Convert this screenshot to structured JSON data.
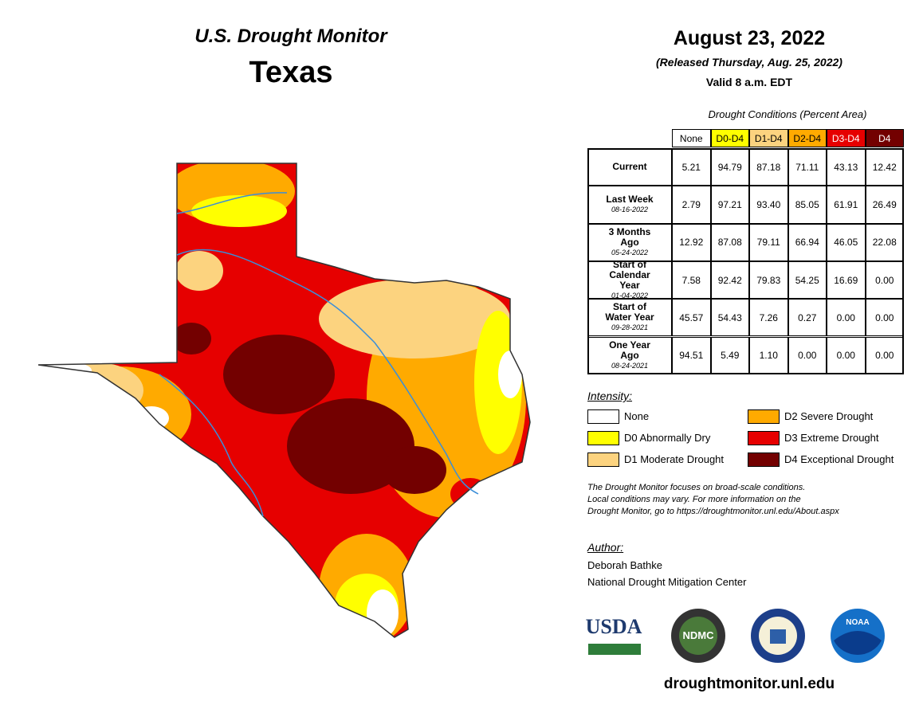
{
  "header": {
    "title": "U.S. Drought Monitor",
    "state": "Texas"
  },
  "release": {
    "date": "August 23, 2022",
    "released": "(Released Thursday, Aug. 25, 2022)",
    "valid": "Valid 8 a.m. EDT"
  },
  "table": {
    "caption": "Drought Conditions (Percent Area)",
    "columns": [
      {
        "label": "None",
        "color": "#ffffff",
        "text": "#000000"
      },
      {
        "label": "D0-D4",
        "color": "#ffff00",
        "text": "#000000"
      },
      {
        "label": "D1-D4",
        "color": "#fcd37f",
        "text": "#000000"
      },
      {
        "label": "D2-D4",
        "color": "#ffaa00",
        "text": "#000000"
      },
      {
        "label": "D3-D4",
        "color": "#e60000",
        "text": "#ffffff"
      },
      {
        "label": "D4",
        "color": "#730000",
        "text": "#ffffff"
      }
    ],
    "rows": [
      {
        "label": "Current",
        "values": [
          "5.21",
          "94.79",
          "87.18",
          "71.11",
          "43.13",
          "12.42"
        ]
      },
      {
        "label": "Last Week",
        "date": "08-16-2022",
        "values": [
          "2.79",
          "97.21",
          "93.40",
          "85.05",
          "61.91",
          "26.49"
        ]
      },
      {
        "label": "3 Months Ago",
        "date": "05-24-2022",
        "values": [
          "12.92",
          "87.08",
          "79.11",
          "66.94",
          "46.05",
          "22.08"
        ]
      },
      {
        "label": "Start of Calendar Year",
        "date": "01-04-2022",
        "values": [
          "7.58",
          "92.42",
          "79.83",
          "54.25",
          "16.69",
          "0.00"
        ]
      },
      {
        "label": "Start of Water Year",
        "date": "09-28-2021",
        "values": [
          "45.57",
          "54.43",
          "7.26",
          "0.27",
          "0.00",
          "0.00"
        ]
      },
      {
        "label": "One Year Ago",
        "date": "08-24-2021",
        "values": [
          "94.51",
          "5.49",
          "1.10",
          "0.00",
          "0.00",
          "0.00"
        ]
      }
    ]
  },
  "legend": {
    "title": "Intensity:",
    "items": [
      {
        "label": "None",
        "color": "#ffffff"
      },
      {
        "label": "D2 Severe Drought",
        "color": "#ffaa00"
      },
      {
        "label": "D0 Abnormally Dry",
        "color": "#ffff00"
      },
      {
        "label": "D3 Extreme Drought",
        "color": "#e60000"
      },
      {
        "label": "D1 Moderate Drought",
        "color": "#fcd37f"
      },
      {
        "label": "D4 Exceptional Drought",
        "color": "#730000"
      }
    ]
  },
  "note": [
    "The Drought Monitor focuses on broad-scale conditions.",
    "Local conditions may vary. For more information on the",
    "Drought Monitor, go to https://droughtmonitor.unl.edu/About.aspx"
  ],
  "author": {
    "title": "Author:",
    "name": "Deborah Bathke",
    "organization": "National Drought Mitigation Center"
  },
  "logos": [
    "USDA",
    "NDMC",
    "NOAA"
  ],
  "url": "droughtmonitor.unl.edu"
}
